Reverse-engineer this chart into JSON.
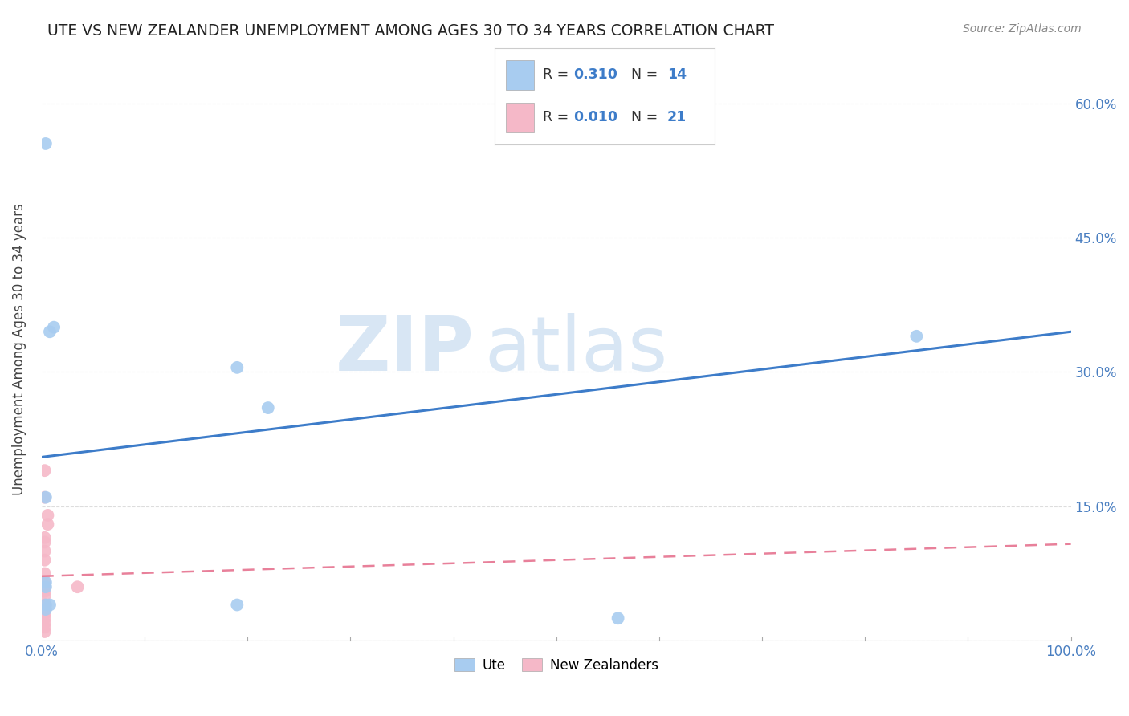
{
  "title": "UTE VS NEW ZEALANDER UNEMPLOYMENT AMONG AGES 30 TO 34 YEARS CORRELATION CHART",
  "source": "Source: ZipAtlas.com",
  "ylabel": "Unemployment Among Ages 30 to 34 years",
  "xlim": [
    0.0,
    1.0
  ],
  "ylim": [
    0.0,
    0.65
  ],
  "x_ticks": [
    0.0,
    0.1,
    0.2,
    0.3,
    0.4,
    0.5,
    0.6,
    0.7,
    0.8,
    0.9,
    1.0
  ],
  "x_tick_labels": [
    "0.0%",
    "",
    "",
    "",
    "",
    "",
    "",
    "",
    "",
    "",
    "100.0%"
  ],
  "y_ticks": [
    0.0,
    0.15,
    0.3,
    0.45,
    0.6
  ],
  "y_tick_labels": [
    "",
    "15.0%",
    "30.0%",
    "45.0%",
    "60.0%"
  ],
  "ute_color": "#A8CCF0",
  "nz_color": "#F5B8C8",
  "trendline_ute_color": "#3D7CC9",
  "trendline_nz_color": "#E8809A",
  "watermark_zip": "ZIP",
  "watermark_atlas": "atlas",
  "legend_ute_R": "0.310",
  "legend_ute_N": "14",
  "legend_nz_R": "0.010",
  "legend_nz_N": "21",
  "ute_x": [
    0.008,
    0.012,
    0.004,
    0.004,
    0.004,
    0.004,
    0.004,
    0.004,
    0.19,
    0.56,
    0.85,
    0.22,
    0.008,
    0.19
  ],
  "ute_y": [
    0.345,
    0.35,
    0.555,
    0.065,
    0.06,
    0.04,
    0.035,
    0.16,
    0.305,
    0.025,
    0.34,
    0.26,
    0.04,
    0.04
  ],
  "nz_x": [
    0.003,
    0.003,
    0.003,
    0.003,
    0.003,
    0.003,
    0.003,
    0.003,
    0.003,
    0.003,
    0.003,
    0.003,
    0.003,
    0.003,
    0.003,
    0.003,
    0.003,
    0.003,
    0.006,
    0.006,
    0.035
  ],
  "nz_y": [
    0.19,
    0.16,
    0.115,
    0.11,
    0.1,
    0.09,
    0.075,
    0.065,
    0.06,
    0.055,
    0.05,
    0.04,
    0.035,
    0.03,
    0.025,
    0.02,
    0.015,
    0.01,
    0.14,
    0.13,
    0.06
  ],
  "marker_size": 130,
  "background_color": "#ffffff",
  "grid_color": "#DDDDDD",
  "trendline_ute_start_y": 0.205,
  "trendline_ute_end_y": 0.345,
  "trendline_nz_start_y": 0.072,
  "trendline_nz_end_y": 0.108
}
